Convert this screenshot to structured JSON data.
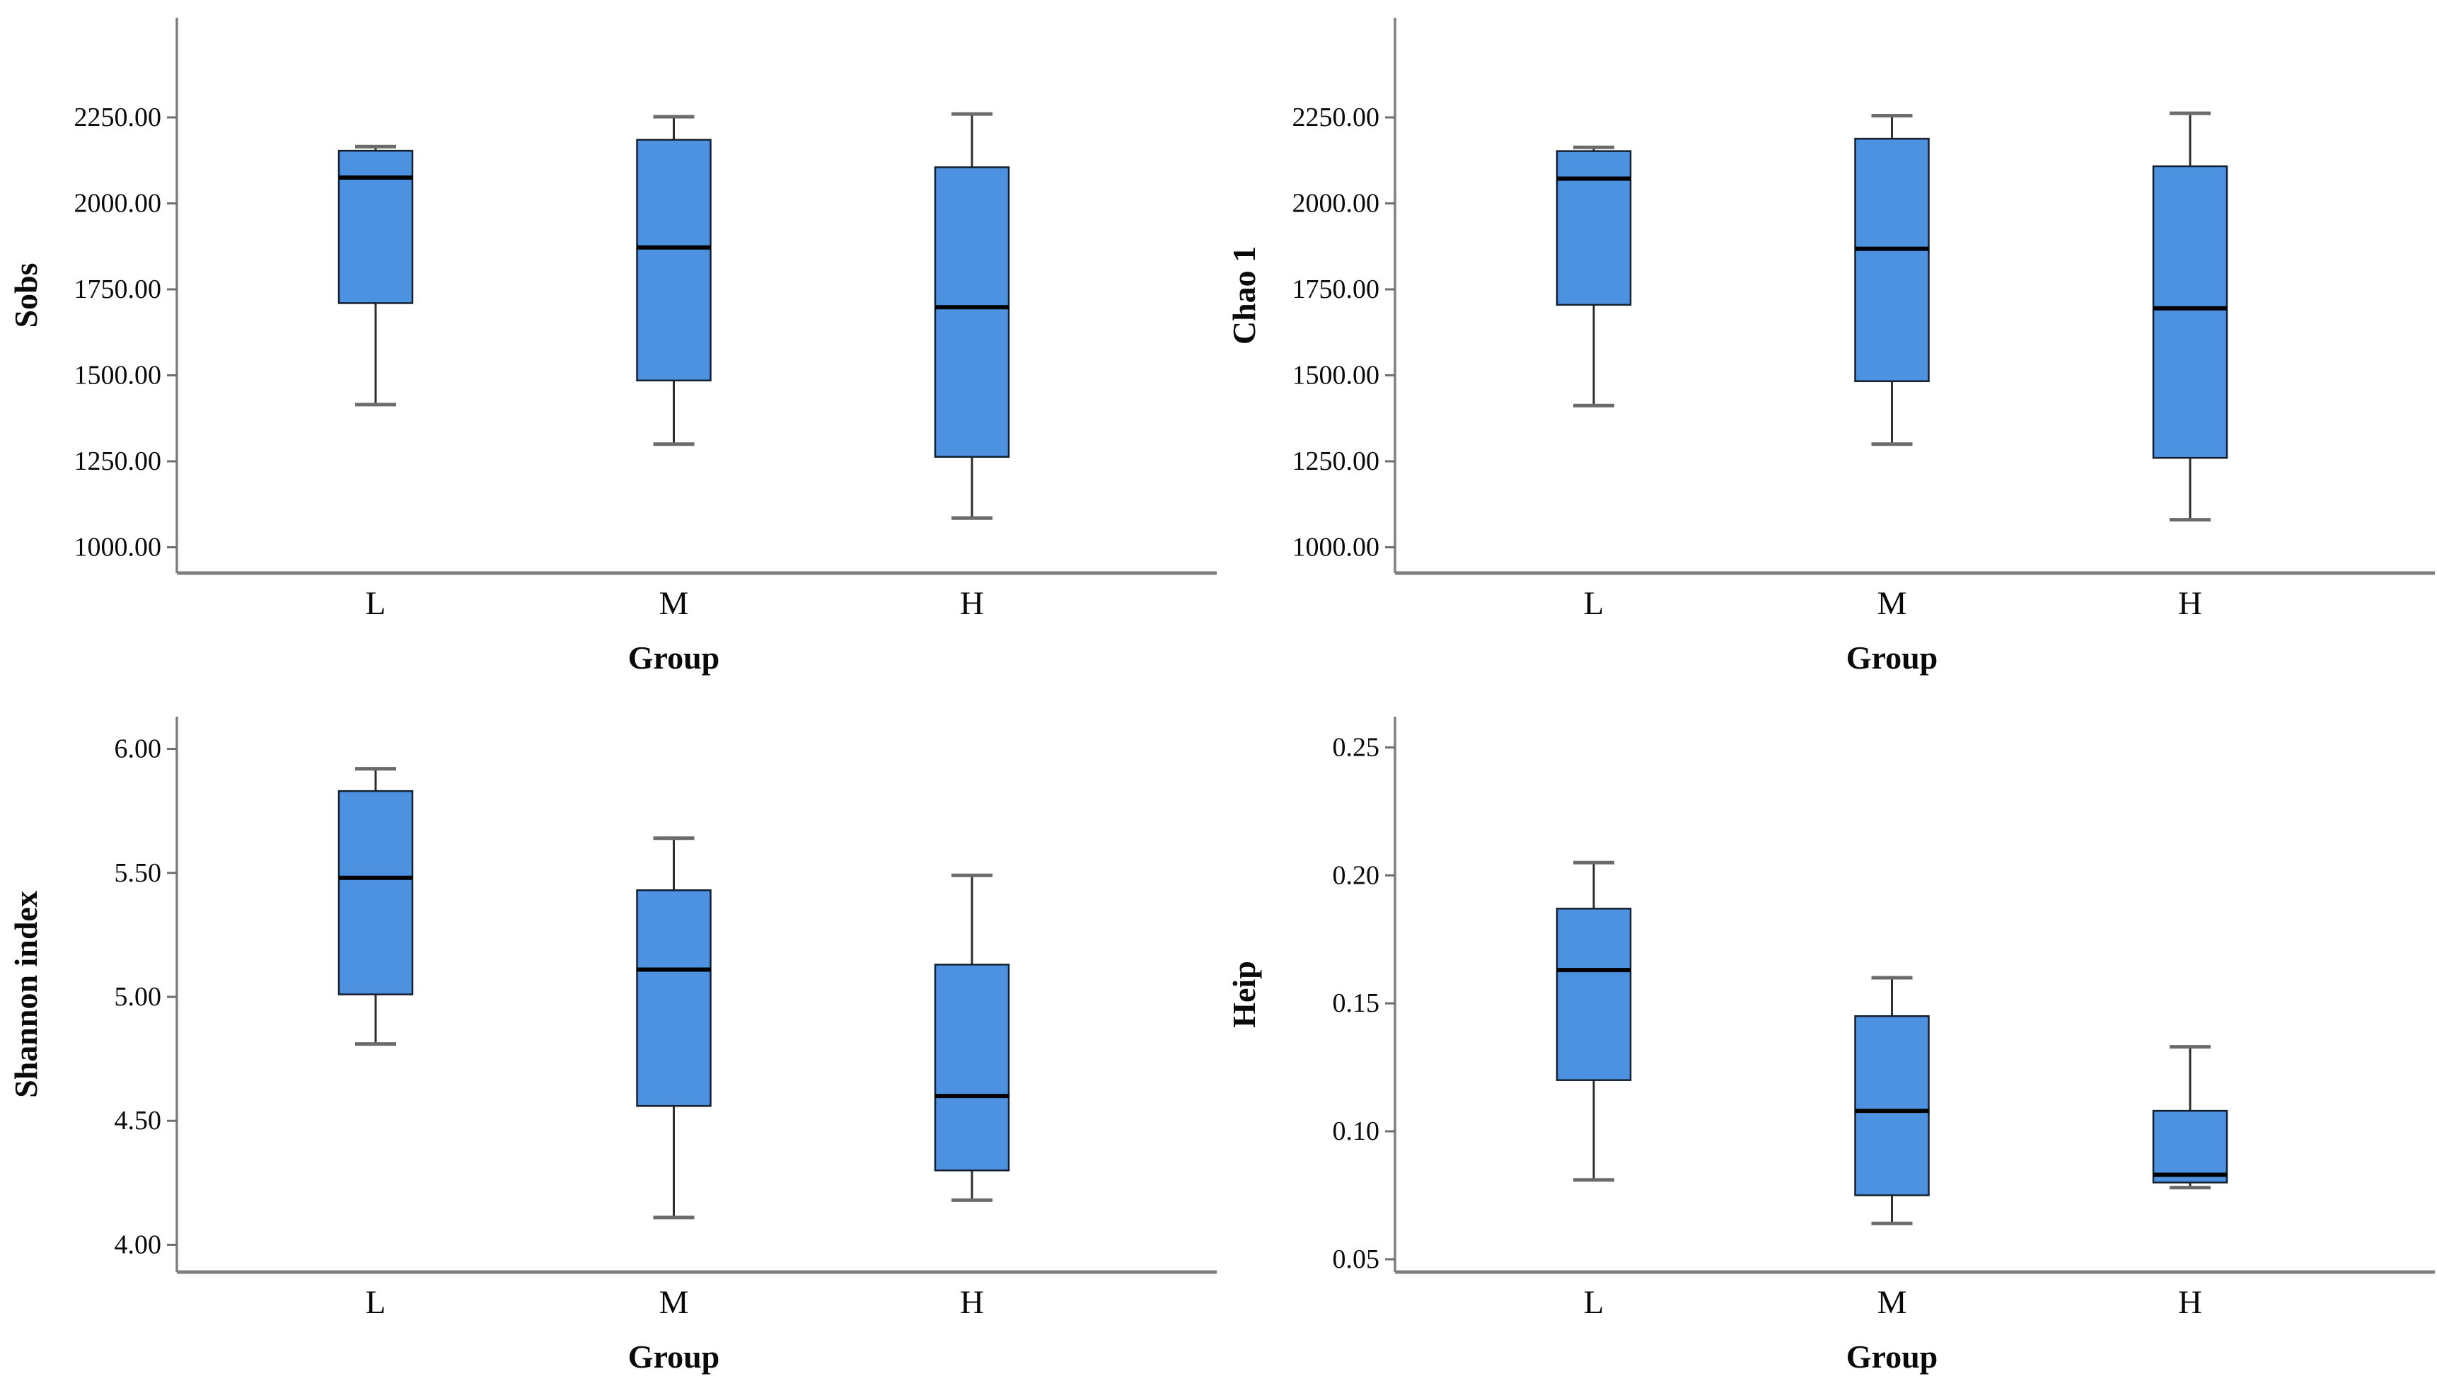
{
  "page": {
    "background": "#ffffff"
  },
  "colors": {
    "box_fill": "#4c92e0",
    "box_stroke": "#14202e",
    "median_line": "#000000",
    "whisker_line": "#2e2e2e",
    "whisker_cap": "#6b6b6b",
    "axis_line": "#7f7f7f",
    "tick_mark": "#6e6e6e",
    "text": "#0a0a0a"
  },
  "chart_data": [
    {
      "type": "box",
      "ylabel": "Sobs",
      "xlabel": "Group",
      "categories": [
        "L",
        "M",
        "H"
      ],
      "ylim": [
        925,
        2540
      ],
      "grid": false,
      "yticks": [
        {
          "label": "2250.00",
          "value": 2250
        },
        {
          "label": "2000.00",
          "value": 2000
        },
        {
          "label": "1750.00",
          "value": 1750
        },
        {
          "label": "1500.00",
          "value": 1500
        },
        {
          "label": "1250.00",
          "value": 1250
        },
        {
          "label": "1000.00",
          "value": 1000
        }
      ],
      "boxes": [
        {
          "category": "L",
          "whisker_low": 1415,
          "q1": 1710,
          "median": 2075,
          "q3": 2153,
          "whisker_high": 2165
        },
        {
          "category": "M",
          "whisker_low": 1300,
          "q1": 1485,
          "median": 1872,
          "q3": 2185,
          "whisker_high": 2252
        },
        {
          "category": "H",
          "whisker_low": 1085,
          "q1": 1263,
          "median": 1698,
          "q3": 2105,
          "whisker_high": 2260
        }
      ]
    },
    {
      "type": "box",
      "ylabel": "Chao 1",
      "xlabel": "Group",
      "categories": [
        "L",
        "M",
        "H"
      ],
      "ylim": [
        925,
        2540
      ],
      "grid": false,
      "yticks": [
        {
          "label": "2250.00",
          "value": 2250
        },
        {
          "label": "2000.00",
          "value": 2000
        },
        {
          "label": "1750.00",
          "value": 1750
        },
        {
          "label": "1500.00",
          "value": 1500
        },
        {
          "label": "1250.00",
          "value": 1250
        },
        {
          "label": "1000.00",
          "value": 1000
        }
      ],
      "boxes": [
        {
          "category": "L",
          "whisker_low": 1412,
          "q1": 1705,
          "median": 2072,
          "q3": 2152,
          "whisker_high": 2163
        },
        {
          "category": "M",
          "whisker_low": 1300,
          "q1": 1483,
          "median": 1868,
          "q3": 2188,
          "whisker_high": 2255
        },
        {
          "category": "H",
          "whisker_low": 1080,
          "q1": 1260,
          "median": 1695,
          "q3": 2108,
          "whisker_high": 2262
        }
      ]
    },
    {
      "type": "box",
      "ylabel": "Shannon index",
      "xlabel": "Group",
      "categories": [
        "L",
        "M",
        "H"
      ],
      "ylim": [
        3.89,
        6.13
      ],
      "grid": false,
      "yticks": [
        {
          "label": "6.00",
          "value": 6.0
        },
        {
          "label": "5.50",
          "value": 5.5
        },
        {
          "label": "5.00",
          "value": 5.0
        },
        {
          "label": "4.50",
          "value": 4.5
        },
        {
          "label": "4.00",
          "value": 4.0
        }
      ],
      "boxes": [
        {
          "category": "L",
          "whisker_low": 4.81,
          "q1": 5.01,
          "median": 5.48,
          "q3": 5.83,
          "whisker_high": 5.92
        },
        {
          "category": "M",
          "whisker_low": 4.11,
          "q1": 4.56,
          "median": 5.11,
          "q3": 5.43,
          "whisker_high": 5.64
        },
        {
          "category": "H",
          "whisker_low": 4.18,
          "q1": 4.3,
          "median": 4.6,
          "q3": 5.13,
          "whisker_high": 5.49
        }
      ]
    },
    {
      "type": "box",
      "ylabel": "Heip",
      "xlabel": "Group",
      "categories": [
        "L",
        "M",
        "H"
      ],
      "ylim": [
        0.045,
        0.262
      ],
      "grid": false,
      "yticks": [
        {
          "label": "0.25",
          "value": 0.25
        },
        {
          "label": "0.20",
          "value": 0.2
        },
        {
          "label": "0.15",
          "value": 0.15
        },
        {
          "label": "0.10",
          "value": 0.1
        },
        {
          "label": "0.05",
          "value": 0.05
        }
      ],
      "boxes": [
        {
          "category": "L",
          "whisker_low": 0.081,
          "q1": 0.12,
          "median": 0.163,
          "q3": 0.187,
          "whisker_high": 0.205
        },
        {
          "category": "M",
          "whisker_low": 0.064,
          "q1": 0.075,
          "median": 0.108,
          "q3": 0.145,
          "whisker_high": 0.16
        },
        {
          "category": "H",
          "whisker_low": 0.078,
          "q1": 0.08,
          "median": 0.083,
          "q3": 0.108,
          "whisker_high": 0.133
        }
      ]
    }
  ]
}
